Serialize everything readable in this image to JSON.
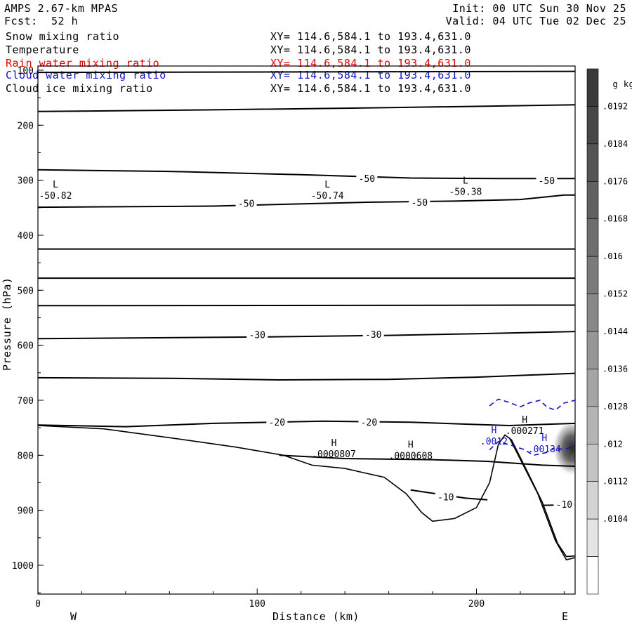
{
  "header": {
    "model": "AMPS 2.67-km MPAS",
    "fcst_label": "Fcst:",
    "fcst_value": "52 h",
    "init": "Init: 00 UTC Sun 30 Nov 25",
    "valid": "Valid: 04 UTC Tue 02 Dec 25"
  },
  "legend": [
    {
      "name": "Snow mixing ratio",
      "range": "XY= 114.6,584.1 to 193.4,631.0",
      "color": "#000000"
    },
    {
      "name": "Temperature",
      "range": "XY= 114.6,584.1 to 193.4,631.0",
      "color": "#000000"
    },
    {
      "name": "Rain water mixing ratio",
      "range": "XY= 114.6,584.1 to 193.4,631.0",
      "color": "#e00000"
    },
    {
      "name": "Cloud water mixing ratio",
      "range": "XY= 114.6,584.1 to 193.4,631.0",
      "color": "#1010c8"
    },
    {
      "name": "Cloud ice mixing ratio",
      "range": "XY= 114.6,584.1 to 193.4,631.0",
      "color": "#000000"
    }
  ],
  "chart_data": {
    "type": "cross-section contour",
    "xlabel": "Distance (km)",
    "ylabel": "Pressure (hPa)",
    "xlim": [
      0,
      245
    ],
    "ylim": [
      1050,
      100
    ],
    "x_ticks": [
      0,
      100,
      200
    ],
    "y_ticks": [
      100,
      200,
      300,
      400,
      500,
      600,
      700,
      800,
      900,
      1000
    ],
    "x_end_labels": {
      "left": "W",
      "right": "E"
    },
    "isotherms": [
      {
        "points": [
          [
            0,
            104
          ],
          [
            245,
            102
          ]
        ]
      },
      {
        "points": [
          [
            0,
            175
          ],
          [
            80,
            172
          ],
          [
            160,
            168
          ],
          [
            245,
            163
          ]
        ]
      },
      {
        "points": [
          [
            0,
            281
          ],
          [
            60,
            284
          ],
          [
            120,
            290
          ],
          [
            170,
            296
          ],
          [
            210,
            297
          ],
          [
            245,
            297
          ]
        ]
      },
      {
        "points": [
          [
            0,
            349
          ],
          [
            80,
            347
          ],
          [
            150,
            340
          ],
          [
            190,
            338
          ],
          [
            220,
            335
          ],
          [
            240,
            327
          ],
          [
            245,
            327
          ]
        ]
      },
      {
        "points": [
          [
            0,
            425
          ],
          [
            245,
            425
          ]
        ]
      },
      {
        "points": [
          [
            0,
            478
          ],
          [
            245,
            478
          ]
        ]
      },
      {
        "points": [
          [
            0,
            528
          ],
          [
            245,
            527
          ]
        ]
      },
      {
        "points": [
          [
            0,
            588
          ],
          [
            100,
            585
          ],
          [
            160,
            582
          ],
          [
            200,
            579
          ],
          [
            245,
            575
          ]
        ]
      },
      {
        "points": [
          [
            0,
            659
          ],
          [
            60,
            660
          ],
          [
            110,
            663
          ],
          [
            160,
            662
          ],
          [
            200,
            658
          ],
          [
            245,
            651
          ]
        ]
      },
      {
        "points": [
          [
            0,
            745
          ],
          [
            40,
            748
          ],
          [
            80,
            742
          ],
          [
            130,
            738
          ],
          [
            170,
            740
          ],
          [
            200,
            744
          ],
          [
            215,
            746
          ],
          [
            245,
            742
          ]
        ]
      },
      {
        "points": [
          [
            110,
            800
          ],
          [
            140,
            806
          ],
          [
            180,
            808
          ],
          [
            205,
            811
          ],
          [
            230,
            818
          ],
          [
            245,
            820
          ]
        ]
      },
      {
        "points": [
          [
            170,
            863
          ],
          [
            195,
            878
          ],
          [
            205,
            881
          ]
        ]
      },
      {
        "points": [
          [
            230,
            891
          ],
          [
            245,
            890
          ]
        ]
      }
    ],
    "isotherm_labels": [
      {
        "x": 150,
        "p": 298,
        "text": "-50"
      },
      {
        "x": 232,
        "p": 302,
        "text": "-50"
      },
      {
        "x": 95,
        "p": 343,
        "text": "-50"
      },
      {
        "x": 174,
        "p": 341,
        "text": "-50"
      },
      {
        "x": 100,
        "p": 582,
        "text": "-30"
      },
      {
        "x": 153,
        "p": 581,
        "text": "-30"
      },
      {
        "x": 109,
        "p": 741,
        "text": "-20"
      },
      {
        "x": 151,
        "p": 741,
        "text": "-20"
      },
      {
        "x": 186,
        "p": 877,
        "text": "-10"
      },
      {
        "x": 240,
        "p": 890,
        "text": "-10"
      }
    ],
    "terrain": {
      "points": [
        [
          0,
          746
        ],
        [
          30,
          752
        ],
        [
          60,
          768
        ],
        [
          90,
          785
        ],
        [
          112,
          800
        ],
        [
          125,
          818
        ],
        [
          140,
          824
        ],
        [
          158,
          840
        ],
        [
          168,
          870
        ],
        [
          175,
          904
        ],
        [
          180,
          920
        ],
        [
          190,
          915
        ],
        [
          200,
          895
        ],
        [
          206,
          850
        ],
        [
          210,
          780
        ],
        [
          213,
          763
        ],
        [
          216,
          772
        ],
        [
          222,
          820
        ],
        [
          230,
          885
        ],
        [
          237,
          960
        ],
        [
          241,
          984
        ],
        [
          245,
          983
        ]
      ]
    },
    "terrain_second": {
      "points": [
        [
          215,
          768
        ],
        [
          228,
          870
        ],
        [
          236,
          955
        ],
        [
          241,
          990
        ],
        [
          245,
          986
        ]
      ]
    },
    "extrema": [
      {
        "x": 8,
        "p": 313,
        "letter": "L",
        "value": "-50.82"
      },
      {
        "x": 132,
        "p": 313,
        "letter": "L",
        "value": "-50.74"
      },
      {
        "x": 195,
        "p": 306,
        "letter": "L",
        "value": "-50.38"
      },
      {
        "x": 135,
        "p": 783,
        "letter": "H",
        "value": ".0000807"
      },
      {
        "x": 170,
        "p": 786,
        "letter": "H",
        "value": ".0000608"
      },
      {
        "x": 208,
        "p": 760,
        "letter": "H",
        "value": ".0012",
        "color": "#1010c8"
      },
      {
        "x": 222,
        "p": 741,
        "letter": "H",
        "value": ".000271"
      },
      {
        "x": 231,
        "p": 774,
        "letter": "H",
        "value": ".00134",
        "color": "#1010c8"
      }
    ],
    "cloud_water_contour": {
      "color": "#1010c8",
      "points": [
        [
          206,
          710
        ],
        [
          210,
          698
        ],
        [
          215,
          704
        ],
        [
          220,
          712
        ],
        [
          224,
          705
        ],
        [
          229,
          700
        ],
        [
          232,
          712
        ],
        [
          236,
          718
        ],
        [
          240,
          705
        ],
        [
          245,
          700
        ]
      ]
    },
    "cloud_water_contour2": {
      "color": "#1010c8",
      "points": [
        [
          206,
          790
        ],
        [
          210,
          775
        ],
        [
          216,
          782
        ],
        [
          222,
          790
        ],
        [
          226,
          800
        ],
        [
          232,
          795
        ],
        [
          236,
          786
        ],
        [
          240,
          790
        ],
        [
          245,
          782
        ]
      ]
    },
    "shading_blob": {
      "x": 241,
      "p": 787
    },
    "colorbar": {
      "unit": "g kg",
      "unit_exp": "-1",
      "labels": [
        ".0192",
        ".0184",
        ".0176",
        ".0168",
        ".016",
        ".0152",
        ".0144",
        ".0136",
        ".0128",
        ".012",
        ".0112",
        ".0104"
      ],
      "colors": [
        "#3a3a3a",
        "#474747",
        "#545454",
        "#616161",
        "#6e6e6e",
        "#7b7b7b",
        "#888888",
        "#969696",
        "#a5a5a5",
        "#b4b4b4",
        "#c4c4c4",
        "#d4d4d4",
        "#e4e4e4",
        "#ffffff"
      ]
    }
  }
}
